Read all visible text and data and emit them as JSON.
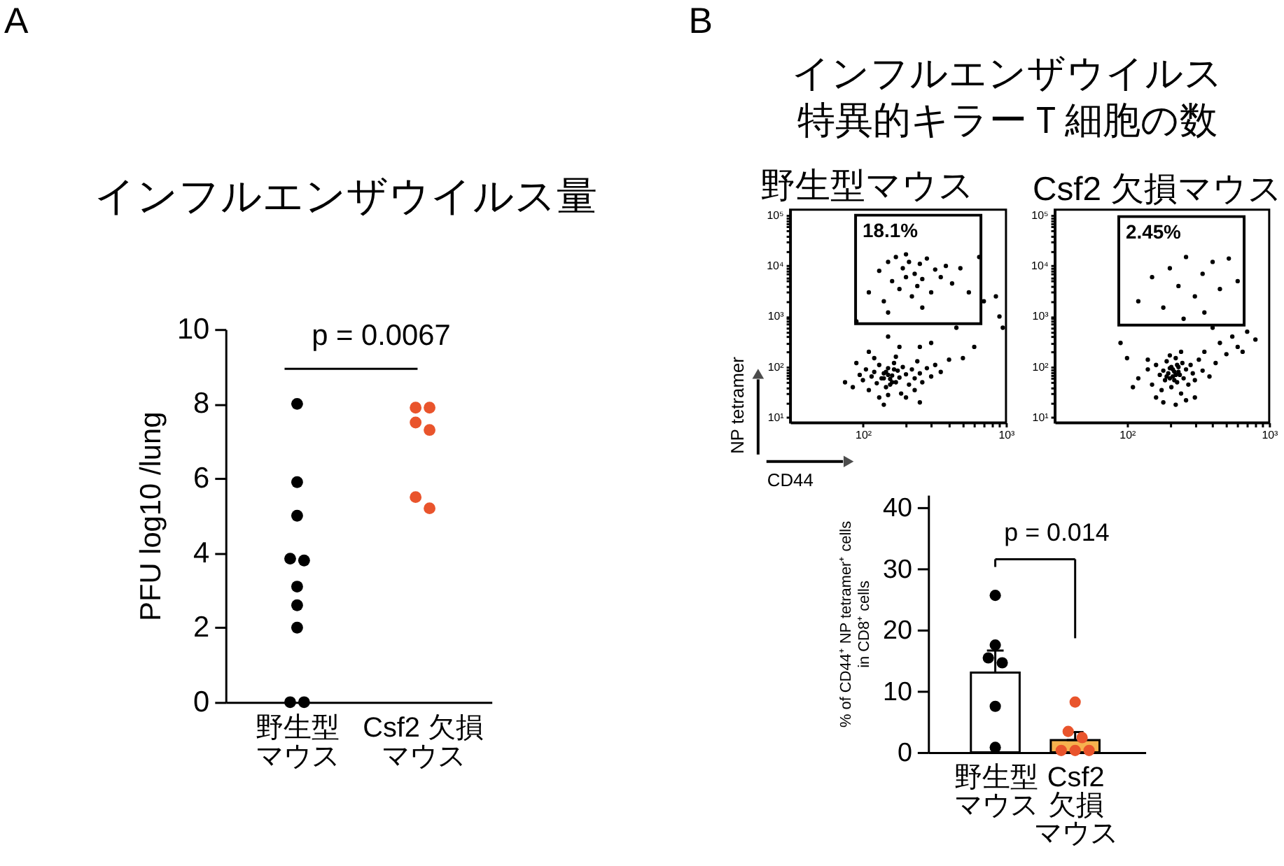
{
  "chart_data": [
    {
      "type": "scatter",
      "title": "インフルエンザウイルス量",
      "ylabel": "PFU log10 /lung",
      "categories": [
        "野生型マウス",
        "Csf2 欠損マウス"
      ],
      "ylim": [
        0,
        10
      ],
      "yticks": [
        0,
        2,
        4,
        6,
        8,
        10
      ],
      "marker": "circle",
      "annotations": [
        "A",
        "p = 0.0067"
      ],
      "series": [
        {
          "color": "#000000",
          "x": [
            "野生型マウス",
            "野生型マウス",
            "野生型マウス",
            "野生型マウス",
            "野生型マウス",
            "野生型マウス",
            "野生型マウス",
            "野生型マウス",
            "野生型マウス",
            "野生型マウス"
          ],
          "values": [
            8.0,
            5.9,
            5.0,
            3.8,
            3.85,
            3.1,
            2.6,
            2.0,
            0,
            0
          ]
        },
        {
          "color": "#e9542c",
          "x": [
            "Csf2 欠損マウス",
            "Csf2 欠損マウス",
            "Csf2 欠損マウス",
            "Csf2 欠損マウス",
            "Csf2 欠損マウス",
            "Csf2 欠損マウス"
          ],
          "values": [
            7.9,
            7.9,
            7.5,
            7.3,
            5.5,
            5.2
          ]
        }
      ]
    },
    {
      "type": "scatter",
      "title": "野生型マウス",
      "xlabel": "CD44",
      "ylabel": "NP tetramer",
      "log": "xy",
      "xlim": [
        31,
        1000
      ],
      "ylim": [
        8,
        130000
      ],
      "marker": "circle",
      "xticks": [
        {
          "value": 100,
          "label": "10²"
        },
        {
          "value": 200,
          "label": null
        },
        {
          "value": 300,
          "label": null
        },
        {
          "value": 400,
          "label": null
        },
        {
          "value": 500,
          "label": null
        },
        {
          "value": 600,
          "label": null
        },
        {
          "value": 700,
          "label": null
        },
        {
          "value": 800,
          "label": null
        },
        {
          "value": 900,
          "label": null
        },
        {
          "value": 1000,
          "label": "10³"
        }
      ],
      "yticks": [
        {
          "value": 10,
          "label": "10¹"
        },
        {
          "value": 20,
          "label": null
        },
        {
          "value": 30,
          "label": null
        },
        {
          "value": 40,
          "label": null
        },
        {
          "value": 50,
          "label": null
        },
        {
          "value": 60,
          "label": null
        },
        {
          "value": 70,
          "label": null
        },
        {
          "value": 80,
          "label": null
        },
        {
          "value": 90,
          "label": null
        },
        {
          "value": 100,
          "label": "10²"
        },
        {
          "value": 200,
          "label": null
        },
        {
          "value": 300,
          "label": null
        },
        {
          "value": 400,
          "label": null
        },
        {
          "value": 500,
          "label": null
        },
        {
          "value": 600,
          "label": null
        },
        {
          "value": 700,
          "label": null
        },
        {
          "value": 800,
          "label": null
        },
        {
          "value": 900,
          "label": null
        },
        {
          "value": 1000,
          "label": "10³"
        },
        {
          "value": 2000,
          "label": null
        },
        {
          "value": 3000,
          "label": null
        },
        {
          "value": 4000,
          "label": null
        },
        {
          "value": 5000,
          "label": null
        },
        {
          "value": 6000,
          "label": null
        },
        {
          "value": 7000,
          "label": null
        },
        {
          "value": 8000,
          "label": null
        },
        {
          "value": 9000,
          "label": null
        },
        {
          "value": 10000,
          "label": "10⁴"
        },
        {
          "value": 20000,
          "label": null
        },
        {
          "value": 30000,
          "label": null
        },
        {
          "value": 40000,
          "label": null
        },
        {
          "value": 50000,
          "label": null
        },
        {
          "value": 60000,
          "label": null
        },
        {
          "value": 70000,
          "label": null
        },
        {
          "value": 80000,
          "label": null
        },
        {
          "value": 90000,
          "label": null
        },
        {
          "value": 100000,
          "label": "10⁵"
        }
      ],
      "annotations": [
        "B",
        "インフルエンザウイルス特異的キラーＴ細胞の数",
        "18.1%"
      ],
      "series": [
        {
          "color": "#000000",
          "x": [
            75,
            85,
            95,
            100,
            105,
            110,
            115,
            120,
            125,
            130,
            135,
            140,
            145,
            150,
            155,
            160,
            165,
            170,
            175,
            180,
            185,
            190,
            200,
            210,
            220,
            230,
            240,
            250,
            260,
            280,
            300,
            320,
            350,
            400,
            130,
            150,
            200,
            90,
            120,
            170,
            230,
            110,
            180,
            140,
            250,
            140,
            150,
            160,
            145,
            165,
            155,
            110,
            130,
            140,
            150,
            160,
            170,
            180,
            190,
            200,
            210,
            220,
            230,
            240,
            250,
            260,
            280,
            300,
            320,
            350,
            380,
            420,
            480,
            550,
            200,
            260,
            150,
            300,
            450,
            150,
            600,
            700,
            650,
            90,
            500,
            250,
            850,
            900,
            950
          ],
          "values": [
            50,
            40,
            70,
            55,
            90,
            35,
            65,
            80,
            48,
            110,
            60,
            75,
            40,
            95,
            58,
            68,
            120,
            50,
            85,
            62,
            30,
            100,
            72,
            45,
            90,
            60,
            130,
            75,
            50,
            95,
            65,
            110,
            80,
            140,
            25,
            28,
            25,
            120,
            150,
            160,
            35,
            200,
            250,
            18,
            20,
            60,
            70,
            50,
            80,
            90,
            45,
            3000,
            8000,
            2000,
            12000,
            5000,
            15000,
            3500,
            9000,
            6000,
            12000,
            2500,
            7000,
            4000,
            11000,
            5500,
            14000,
            3000,
            8500,
            6000,
            10000,
            4500,
            9000,
            3000,
            17000,
            1500,
            1200,
            300,
            600,
            400,
            250,
            2000,
            15000,
            800,
            150,
            250,
            2500,
            1000,
            600
          ]
        }
      ]
    },
    {
      "type": "scatter",
      "title": "Csf2 欠損マウス",
      "log": "xy",
      "xlim": [
        31,
        1000
      ],
      "ylim": [
        8,
        130000
      ],
      "marker": "circle",
      "xticks": [
        {
          "value": 100,
          "label": "10²"
        },
        {
          "value": 200,
          "label": null
        },
        {
          "value": 300,
          "label": null
        },
        {
          "value": 400,
          "label": null
        },
        {
          "value": 500,
          "label": null
        },
        {
          "value": 600,
          "label": null
        },
        {
          "value": 700,
          "label": null
        },
        {
          "value": 800,
          "label": null
        },
        {
          "value": 900,
          "label": null
        },
        {
          "value": 1000,
          "label": "10³"
        }
      ],
      "yticks": [
        {
          "value": 10,
          "label": "10¹"
        },
        {
          "value": 20,
          "label": null
        },
        {
          "value": 30,
          "label": null
        },
        {
          "value": 40,
          "label": null
        },
        {
          "value": 50,
          "label": null
        },
        {
          "value": 60,
          "label": null
        },
        {
          "value": 70,
          "label": null
        },
        {
          "value": 80,
          "label": null
        },
        {
          "value": 90,
          "label": null
        },
        {
          "value": 100,
          "label": "10²"
        },
        {
          "value": 200,
          "label": null
        },
        {
          "value": 300,
          "label": null
        },
        {
          "value": 400,
          "label": null
        },
        {
          "value": 500,
          "label": null
        },
        {
          "value": 600,
          "label": null
        },
        {
          "value": 700,
          "label": null
        },
        {
          "value": 800,
          "label": null
        },
        {
          "value": 900,
          "label": null
        },
        {
          "value": 1000,
          "label": "10³"
        },
        {
          "value": 2000,
          "label": null
        },
        {
          "value": 3000,
          "label": null
        },
        {
          "value": 4000,
          "label": null
        },
        {
          "value": 5000,
          "label": null
        },
        {
          "value": 6000,
          "label": null
        },
        {
          "value": 7000,
          "label": null
        },
        {
          "value": 8000,
          "label": null
        },
        {
          "value": 9000,
          "label": null
        },
        {
          "value": 10000,
          "label": "10⁴"
        },
        {
          "value": 20000,
          "label": null
        },
        {
          "value": 30000,
          "label": null
        },
        {
          "value": 40000,
          "label": null
        },
        {
          "value": 50000,
          "label": null
        },
        {
          "value": 60000,
          "label": null
        },
        {
          "value": 70000,
          "label": null
        },
        {
          "value": 80000,
          "label": null
        },
        {
          "value": 90000,
          "label": null
        },
        {
          "value": 100000,
          "label": "10⁵"
        }
      ],
      "annotations": [
        "2.45%"
      ],
      "series": [
        {
          "color": "#000000",
          "x": [
            120,
            140,
            150,
            160,
            170,
            175,
            180,
            185,
            190,
            195,
            200,
            205,
            210,
            215,
            220,
            225,
            230,
            235,
            240,
            245,
            250,
            260,
            270,
            280,
            290,
            300,
            320,
            340,
            380,
            420,
            180,
            220,
            260,
            200,
            240,
            160,
            300,
            140,
            350,
            450,
            200,
            210,
            220,
            230,
            190,
            215,
            225,
            205,
            500,
            550,
            600,
            700,
            800,
            650,
            400,
            120,
            150,
            180,
            200,
            230,
            260,
            300,
            340,
            400,
            450,
            520,
            600,
            350,
            250,
            90,
            110,
            100
          ],
          "values": [
            60,
            90,
            45,
            110,
            70,
            35,
            85,
            55,
            130,
            75,
            95,
            40,
            65,
            81,
            150,
            50,
            100,
            70,
            30,
            120,
            60,
            90,
            45,
            110,
            75,
            55,
            140,
            85,
            65,
            120,
            20,
            18,
            22,
            170,
            200,
            25,
            25,
            140,
            200,
            300,
            60,
            90,
            70,
            80,
            65,
            55,
            110,
            100,
            180,
            400,
            250,
            500,
            350,
            200,
            600,
            2000,
            6000,
            1500,
            9000,
            4000,
            15000,
            2500,
            7000,
            12000,
            3500,
            14000,
            5000,
            1200,
            900,
            300,
            40,
            150
          ]
        }
      ]
    },
    {
      "type": "bar",
      "ylabel": "% of CD44⁺ NP tetramer⁺ cells\nin CD8⁺ cells",
      "categories": [
        "野生型マウス",
        "Csf2 欠損マウス"
      ],
      "ylim": [
        0,
        42
      ],
      "yticks": [
        0,
        10,
        20,
        30,
        40
      ],
      "marker": "circle",
      "annotations": [
        "p = 0.014"
      ],
      "series": [
        {
          "type": "bar",
          "values": [
            13.0,
            2.0
          ],
          "colors": [
            "#ffffff",
            "#f6b24e"
          ],
          "errors": [
            [
              13.0,
              16.6
            ],
            [
              2.0,
              3.3
            ]
          ]
        },
        {
          "type": "scatter",
          "color": "#000000",
          "x": [
            "野生型マウス",
            "野生型マウス",
            "野生型マウス",
            "野生型マウス",
            "野生型マウス",
            "野生型マウス"
          ],
          "values": [
            25.6,
            17.5,
            15.4,
            14.6,
            7.5,
            0.8
          ]
        },
        {
          "type": "scatter",
          "color": "#e9542c",
          "x": [
            "Csf2 欠損マウス",
            "Csf2 欠損マウス",
            "Csf2 欠損マウス",
            "Csf2 欠損マウス",
            "Csf2 欠損マウス",
            "Csf2 欠損マウス"
          ],
          "values": [
            8.2,
            3.4,
            2.4,
            0.3,
            0.3,
            0.3
          ]
        }
      ]
    }
  ]
}
